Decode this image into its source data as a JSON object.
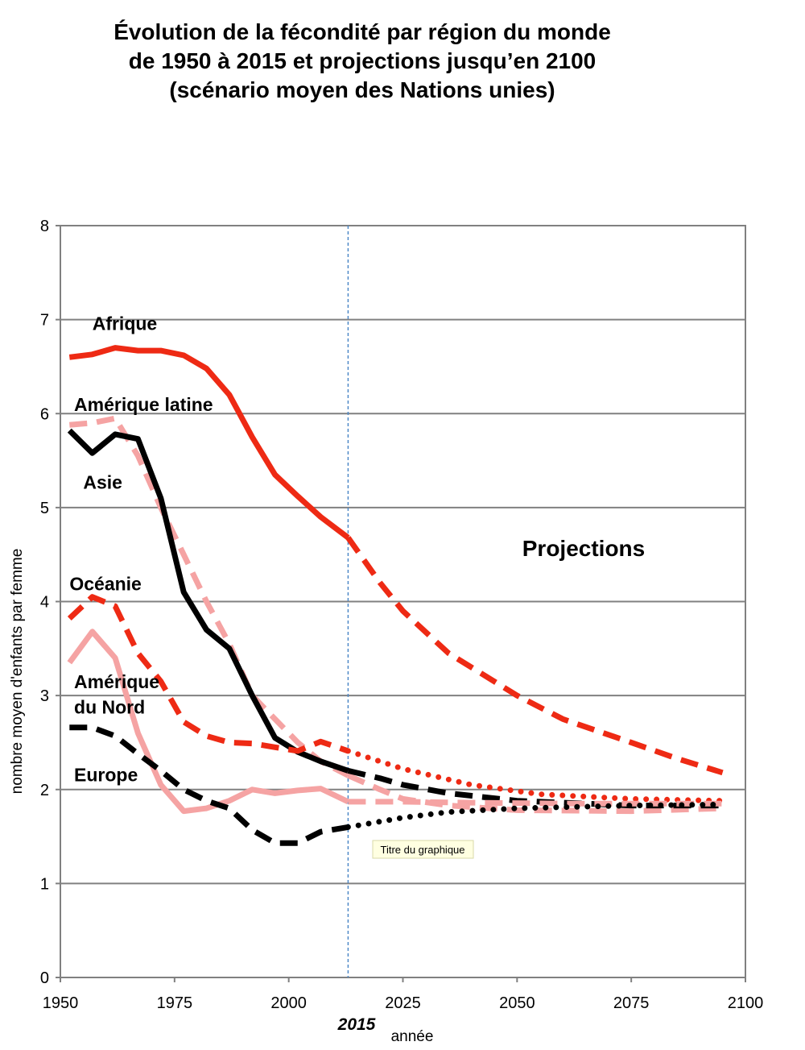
{
  "title": {
    "line1": "Évolution de la fécondité par région du monde",
    "line2": "de 1950 à 2015 et projections jusqu’en 2100",
    "line3": "(scénario moyen des Nations unies)"
  },
  "colors": {
    "red": "#ee2a14",
    "black": "#000000",
    "pink": "#f5a3a3",
    "grid": "#808080",
    "marker": "#4f89c8"
  },
  "chart_data": {
    "type": "line",
    "title": "Évolution de la fécondité par région du monde de 1950 à 2015 et projections jusqu’en 2100 (scénario moyen des Nations unies)",
    "xlabel": "année",
    "ylabel": "nombre moyen d'enfants par femme",
    "xlim": [
      1950,
      2100
    ],
    "ylim": [
      0,
      8
    ],
    "xticks": [
      1950,
      1975,
      2000,
      2025,
      2050,
      2075,
      2100
    ],
    "yticks": [
      0,
      1,
      2,
      3,
      4,
      5,
      6,
      7,
      8
    ],
    "grid": true,
    "marker_year": 2013,
    "marker_label": "2015",
    "projection_label": "Projections",
    "tooltip": "Titre du graphique",
    "series": [
      {
        "name": "Afrique",
        "color": "red",
        "historical_style": "solid",
        "projection_style": "dashed",
        "historical": [
          [
            1952,
            6.6
          ],
          [
            1957,
            6.63
          ],
          [
            1962,
            6.7
          ],
          [
            1967,
            6.67
          ],
          [
            1972,
            6.67
          ],
          [
            1977,
            6.62
          ],
          [
            1982,
            6.48
          ],
          [
            1987,
            6.2
          ],
          [
            1992,
            5.75
          ],
          [
            1997,
            5.35
          ],
          [
            2002,
            5.12
          ],
          [
            2007,
            4.9
          ],
          [
            2013,
            4.68
          ]
        ],
        "projection": [
          [
            2013,
            4.68
          ],
          [
            2020,
            4.2
          ],
          [
            2025,
            3.9
          ],
          [
            2035,
            3.45
          ],
          [
            2050,
            3.0
          ],
          [
            2060,
            2.75
          ],
          [
            2075,
            2.5
          ],
          [
            2085,
            2.33
          ],
          [
            2095,
            2.18
          ]
        ]
      },
      {
        "name": "Amérique latine",
        "color": "pink",
        "historical_style": "dashed",
        "projection_style": "dashed",
        "historical": [
          [
            1952,
            5.88
          ],
          [
            1957,
            5.9
          ],
          [
            1962,
            5.95
          ],
          [
            1967,
            5.55
          ],
          [
            1972,
            5.0
          ],
          [
            1977,
            4.5
          ],
          [
            1982,
            4.0
          ],
          [
            1987,
            3.55
          ],
          [
            1992,
            3.0
          ],
          [
            1997,
            2.75
          ],
          [
            2002,
            2.5
          ],
          [
            2007,
            2.3
          ],
          [
            2013,
            2.15
          ]
        ],
        "projection": [
          [
            2013,
            2.15
          ],
          [
            2020,
            2.0
          ],
          [
            2025,
            1.9
          ],
          [
            2035,
            1.83
          ],
          [
            2050,
            1.78
          ],
          [
            2075,
            1.77
          ],
          [
            2095,
            1.8
          ]
        ]
      },
      {
        "name": "Asie",
        "color": "black",
        "historical_style": "solid",
        "projection_style": "dashed",
        "historical": [
          [
            1952,
            5.82
          ],
          [
            1957,
            5.58
          ],
          [
            1962,
            5.78
          ],
          [
            1967,
            5.73
          ],
          [
            1972,
            5.1
          ],
          [
            1977,
            4.1
          ],
          [
            1982,
            3.7
          ],
          [
            1987,
            3.5
          ],
          [
            1992,
            3.0
          ],
          [
            1997,
            2.55
          ],
          [
            2002,
            2.4
          ],
          [
            2007,
            2.3
          ],
          [
            2013,
            2.2
          ]
        ],
        "projection": [
          [
            2013,
            2.2
          ],
          [
            2020,
            2.12
          ],
          [
            2025,
            2.05
          ],
          [
            2035,
            1.96
          ],
          [
            2050,
            1.88
          ],
          [
            2075,
            1.83
          ],
          [
            2095,
            1.83
          ]
        ]
      },
      {
        "name": "Océanie",
        "color": "red",
        "historical_style": "dashed",
        "projection_style": "dotted",
        "historical": [
          [
            1952,
            3.82
          ],
          [
            1957,
            4.05
          ],
          [
            1962,
            3.95
          ],
          [
            1967,
            3.45
          ],
          [
            1972,
            3.15
          ],
          [
            1977,
            2.72
          ],
          [
            1982,
            2.57
          ],
          [
            1987,
            2.5
          ],
          [
            1992,
            2.49
          ],
          [
            1997,
            2.45
          ],
          [
            2002,
            2.41
          ],
          [
            2007,
            2.51
          ],
          [
            2013,
            2.41
          ]
        ],
        "projection": [
          [
            2013,
            2.41
          ],
          [
            2025,
            2.22
          ],
          [
            2040,
            2.05
          ],
          [
            2055,
            1.95
          ],
          [
            2075,
            1.9
          ],
          [
            2095,
            1.88
          ]
        ]
      },
      {
        "name": "Amérique du Nord",
        "color": "pink",
        "historical_style": "solid",
        "projection_style": "dashed",
        "historical": [
          [
            1952,
            3.35
          ],
          [
            1957,
            3.68
          ],
          [
            1962,
            3.4
          ],
          [
            1967,
            2.6
          ],
          [
            1972,
            2.05
          ],
          [
            1977,
            1.77
          ],
          [
            1982,
            1.8
          ],
          [
            1987,
            1.88
          ],
          [
            1992,
            2.0
          ],
          [
            1997,
            1.96
          ],
          [
            2002,
            1.99
          ],
          [
            2007,
            2.01
          ],
          [
            2013,
            1.87
          ]
        ],
        "projection": [
          [
            2013,
            1.87
          ],
          [
            2025,
            1.87
          ],
          [
            2040,
            1.86
          ],
          [
            2060,
            1.85
          ],
          [
            2075,
            1.85
          ],
          [
            2095,
            1.85
          ]
        ]
      },
      {
        "name": "Europe",
        "color": "black",
        "historical_style": "dashed",
        "projection_style": "dotted",
        "historical": [
          [
            1952,
            2.66
          ],
          [
            1957,
            2.66
          ],
          [
            1962,
            2.57
          ],
          [
            1967,
            2.38
          ],
          [
            1972,
            2.2
          ],
          [
            1977,
            2.0
          ],
          [
            1982,
            1.88
          ],
          [
            1987,
            1.8
          ],
          [
            1992,
            1.57
          ],
          [
            1997,
            1.43
          ],
          [
            2002,
            1.43
          ],
          [
            2007,
            1.55
          ],
          [
            2013,
            1.6
          ]
        ],
        "projection": [
          [
            2013,
            1.6
          ],
          [
            2025,
            1.7
          ],
          [
            2035,
            1.76
          ],
          [
            2050,
            1.8
          ],
          [
            2075,
            1.83
          ],
          [
            2095,
            1.84
          ]
        ]
      }
    ],
    "labels": [
      {
        "key": "Afrique",
        "text": "Afrique",
        "x": 1957,
        "y": 6.89
      },
      {
        "key": "Amérique latine",
        "text": "Amérique latine",
        "x": 1953,
        "y": 6.03
      },
      {
        "key": "Asie",
        "text": "Asie",
        "x": 1955,
        "y": 5.2
      },
      {
        "key": "Océanie",
        "text": "Océanie",
        "x": 1952,
        "y": 4.12
      },
      {
        "key": "Amérique du Nord 1",
        "text": "Amérique",
        "x": 1953,
        "y": 3.08
      },
      {
        "key": "Amérique du Nord 2",
        "text": "du Nord",
        "x": 1953,
        "y": 2.81
      },
      {
        "key": "Europe",
        "text": "Europe",
        "x": 1953,
        "y": 2.09
      }
    ]
  }
}
